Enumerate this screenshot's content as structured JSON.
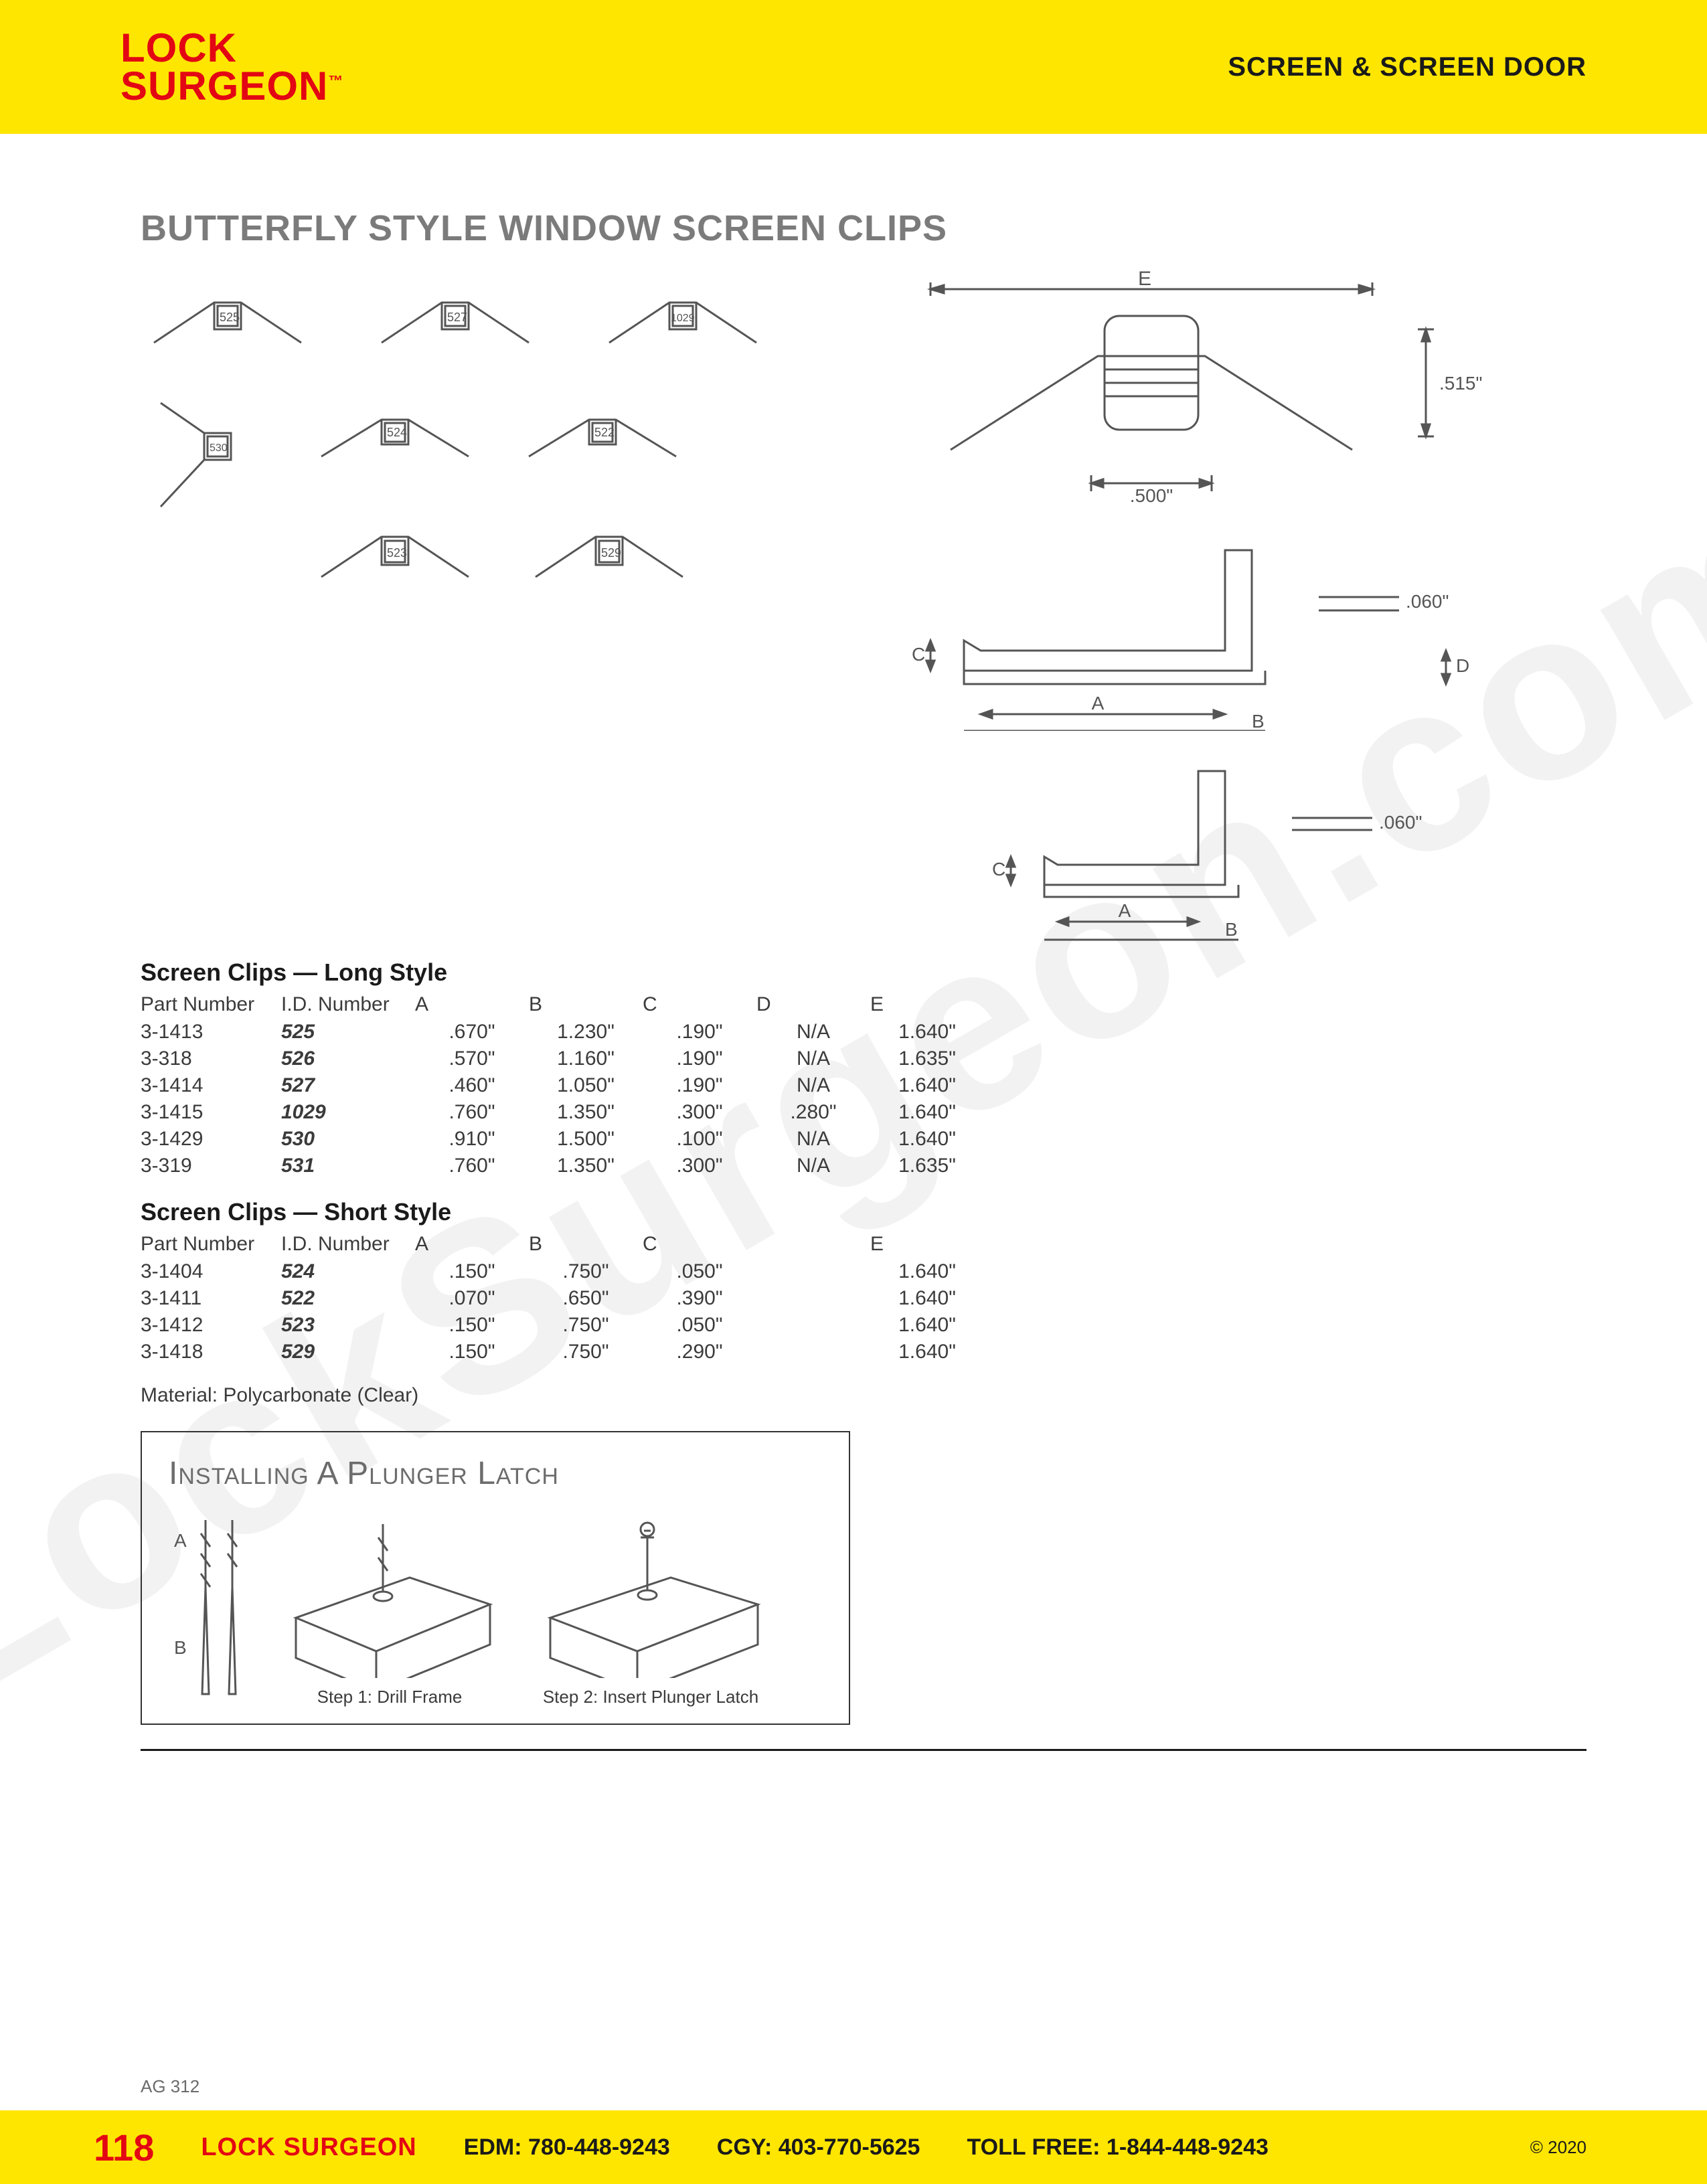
{
  "watermark": "LockSurgeon.com",
  "header": {
    "logo_line1": "LOCK",
    "logo_line2": "SURGEON",
    "tm": "™",
    "category": "SCREEN & SCREEN DOOR"
  },
  "title": "BUTTERFLY STYLE WINDOW SCREEN CLIPS",
  "clip_ids": [
    "525",
    "527",
    "1029",
    "530",
    "524",
    "522",
    "523",
    "529"
  ],
  "top_dim": {
    "E": "E",
    "width": ".500\"",
    "height": ".515\""
  },
  "side_dim": {
    "A": "A",
    "B": "B",
    "C": "C",
    "D": "D",
    "t": ".060\""
  },
  "short_dim": {
    "A": "A",
    "B": "B",
    "C": "C",
    "t": ".060\""
  },
  "long_table": {
    "title": "Screen Clips — Long Style",
    "columns": [
      "Part Number",
      "I.D. Number",
      "A",
      "B",
      "C",
      "D",
      "E"
    ],
    "rows": [
      [
        "3-1413",
        "525",
        ".670\"",
        "1.230\"",
        ".190\"",
        "N/A",
        "1.640\""
      ],
      [
        "3-318",
        "526",
        ".570\"",
        "1.160\"",
        ".190\"",
        "N/A",
        "1.635\""
      ],
      [
        "3-1414",
        "527",
        ".460\"",
        "1.050\"",
        ".190\"",
        "N/A",
        "1.640\""
      ],
      [
        "3-1415",
        "1029",
        ".760\"",
        "1.350\"",
        ".300\"",
        ".280\"",
        "1.640\""
      ],
      [
        "3-1429",
        "530",
        ".910\"",
        "1.500\"",
        ".100\"",
        "N/A",
        "1.640\""
      ],
      [
        "3-319",
        "531",
        ".760\"",
        "1.350\"",
        ".300\"",
        "N/A",
        "1.635\""
      ]
    ]
  },
  "short_table": {
    "title": "Screen Clips — Short Style",
    "columns": [
      "Part Number",
      "I.D. Number",
      "A",
      "B",
      "C",
      "",
      "E"
    ],
    "rows": [
      [
        "3-1404",
        "524",
        ".150\"",
        ".750\"",
        ".050\"",
        "",
        "1.640\""
      ],
      [
        "3-1411",
        "522",
        ".070\"",
        ".650\"",
        ".390\"",
        "",
        "1.640\""
      ],
      [
        "3-1412",
        "523",
        ".150\"",
        ".750\"",
        ".050\"",
        "",
        "1.640\""
      ],
      [
        "3-1418",
        "529",
        ".150\"",
        ".750\"",
        ".290\"",
        "",
        "1.640\""
      ]
    ]
  },
  "material_label": "Material:",
  "material_value": "Polycarbonate (Clear)",
  "install": {
    "title": "Installing A Plunger Latch",
    "labelA": "A",
    "labelB": "B",
    "step1": "Step 1: Drill Frame",
    "step2": "Step 2: Insert Plunger  Latch"
  },
  "ag_code": "AG 312",
  "footer": {
    "page": "118",
    "brand": "LOCK SURGEON",
    "edm_label": "EDM:",
    "edm": "780-448-9243",
    "cgy_label": "CGY:",
    "cgy": "403-770-5625",
    "tf_label": "TOLL FREE:",
    "tf": "1-844-448-9243",
    "copyright": "© 2020"
  },
  "colors": {
    "yellow": "#ffe600",
    "red": "#e30613",
    "title_gray": "#7b7b7b",
    "text": "#3b3b3b",
    "line": "#555555"
  }
}
